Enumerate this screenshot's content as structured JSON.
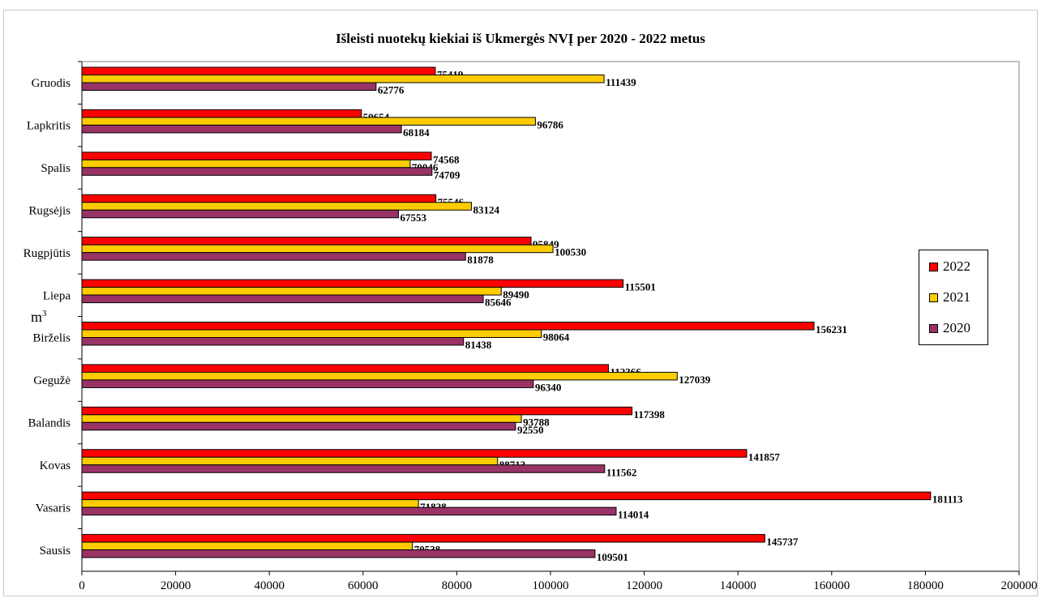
{
  "chart_data": {
    "type": "bar",
    "orientation": "horizontal",
    "title": "Išleisti nuotekų kiekiai iš Ukmergės NVĮ per 2020 - 2022 metus",
    "ylabel_base": "m",
    "ylabel_sup": "3",
    "xlim": [
      0,
      200000
    ],
    "xticks": [
      "0",
      "20000",
      "40000",
      "60000",
      "80000",
      "100000",
      "120000",
      "140000",
      "160000",
      "180000",
      "200000"
    ],
    "categories": [
      "Gruodis",
      "Lapkritis",
      "Spalis",
      "Rugsėjis",
      "Rugpjūtis",
      "Liepa",
      "Birželis",
      "Gegužė",
      "Balandis",
      "Kovas",
      "Vasaris",
      "Sausis"
    ],
    "series": [
      {
        "name": "2022",
        "color": "#ff0000",
        "values": [
          75419,
          59654,
          74568,
          75546,
          95849,
          115501,
          156231,
          112366,
          117398,
          141857,
          181113,
          145737
        ]
      },
      {
        "name": "2021",
        "color": "#ffcc00",
        "values": [
          111439,
          96786,
          70046,
          83124,
          100530,
          89490,
          98064,
          127039,
          93788,
          88713,
          71828,
          70538
        ]
      },
      {
        "name": "2020",
        "color": "#993366",
        "values": [
          62776,
          68184,
          74709,
          67553,
          81878,
          85646,
          81438,
          96340,
          92550,
          111562,
          114014,
          109501
        ]
      }
    ],
    "legend_position": "right"
  }
}
